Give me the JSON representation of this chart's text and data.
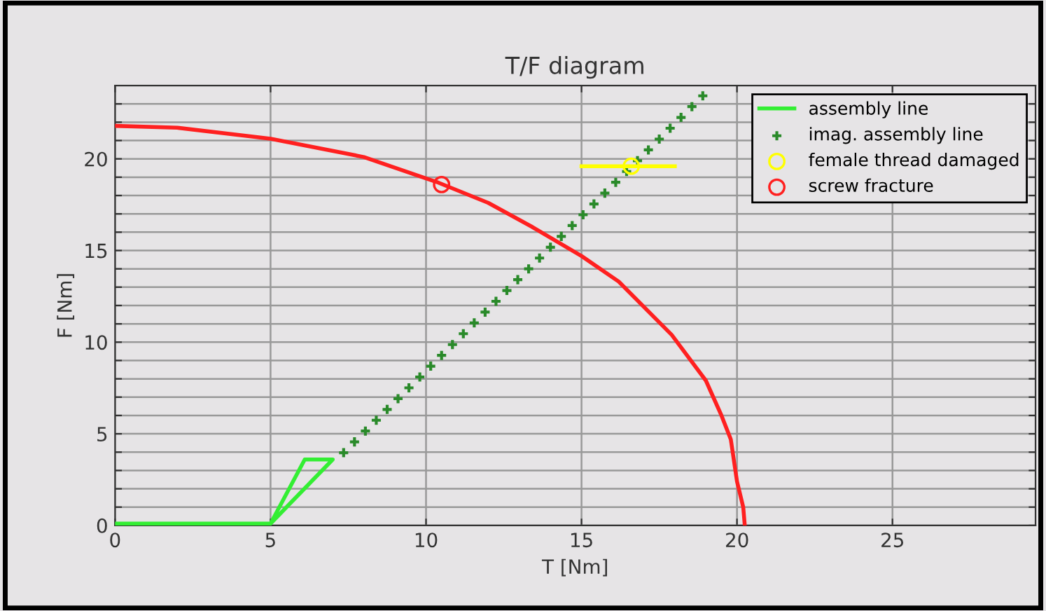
{
  "chart_data": {
    "type": "line",
    "title": "T/F diagram",
    "xlabel": "T [Nm]",
    "ylabel": "F [Nm]",
    "xlim": [
      0,
      29.6
    ],
    "ylim": [
      0,
      24
    ],
    "xticks": [
      0,
      5,
      10,
      15,
      20,
      25
    ],
    "yticks": [
      0,
      {
        "value": 1,
        "label": null
      },
      {
        "value": 2,
        "label": null
      },
      {
        "value": 3,
        "label": null
      },
      {
        "value": 4,
        "label": null
      },
      5,
      {
        "value": 6,
        "label": null
      },
      {
        "value": 7,
        "label": null
      },
      {
        "value": 8,
        "label": null
      },
      {
        "value": 9,
        "label": null
      },
      10,
      {
        "value": 11,
        "label": null
      },
      {
        "value": 12,
        "label": null
      },
      {
        "value": 13,
        "label": null
      },
      {
        "value": 14,
        "label": null
      },
      15,
      {
        "value": 16,
        "label": null
      },
      {
        "value": 17,
        "label": null
      },
      {
        "value": 18,
        "label": null
      },
      {
        "value": 19,
        "label": null
      },
      20,
      {
        "value": 21,
        "label": null
      },
      {
        "value": 22,
        "label": null
      },
      {
        "value": 23,
        "label": null
      }
    ],
    "grid": true,
    "legend": "top right",
    "series": [
      {
        "name": "assembly line",
        "color": "#33ee33",
        "line_style": "solid",
        "marker": "none",
        "x": [
          0,
          5,
          6.1,
          7,
          5
        ],
        "values": [
          0.1,
          0.1,
          3.6,
          3.6,
          0.1
        ]
      },
      {
        "name": "imag. assembly line",
        "type": "scatter",
        "color": "#2a8a2a",
        "marker": "cross",
        "x": [
          7.35,
          7.7,
          8.05,
          8.4,
          8.75,
          9.1,
          9.45,
          9.8,
          10.15,
          10.5,
          10.85,
          11.2,
          11.55,
          11.9,
          12.25,
          12.6,
          12.95,
          13.3,
          13.65,
          14.0,
          14.35,
          14.7,
          15.05,
          15.4,
          15.75,
          16.1,
          16.45,
          16.8,
          17.15,
          17.5,
          17.85,
          18.2,
          18.55,
          18.9
        ],
        "values": [
          3.97,
          4.56,
          5.15,
          5.74,
          6.33,
          6.92,
          7.51,
          8.1,
          8.69,
          9.28,
          9.87,
          10.46,
          11.05,
          11.64,
          12.23,
          12.82,
          13.41,
          14.0,
          14.59,
          15.18,
          15.77,
          16.36,
          16.95,
          17.54,
          18.13,
          18.72,
          19.31,
          19.9,
          20.49,
          21.08,
          21.67,
          22.26,
          22.85,
          23.44
        ]
      },
      {
        "color": "#ffff00",
        "line_style": "solid",
        "marker": "none",
        "x": [
          15,
          18
        ],
        "values": [
          19.6,
          19.6
        ]
      },
      {
        "name": "female thread damaged",
        "type": "scatter",
        "color": "#ffff00",
        "marker": "circle",
        "x": [
          16.6
        ],
        "values": [
          19.6
        ]
      },
      {
        "color": "#ff2020",
        "line_style": "solid",
        "marker": "none",
        "x": [
          0,
          2,
          5,
          8,
          10.4,
          12,
          13.4,
          15,
          16.2,
          17.9,
          19,
          19.5,
          19.8,
          20,
          20.2,
          20.25
        ],
        "values": [
          21.8,
          21.7,
          21.1,
          20.1,
          18.7,
          17.6,
          16.3,
          14.7,
          13.3,
          10.4,
          7.9,
          6,
          4.7,
          2.4,
          1,
          0
        ]
      },
      {
        "name": "screw fracture",
        "type": "scatter",
        "color": "#ff2020",
        "marker": "circle",
        "x": [
          10.5
        ],
        "values": [
          18.6
        ]
      }
    ]
  }
}
